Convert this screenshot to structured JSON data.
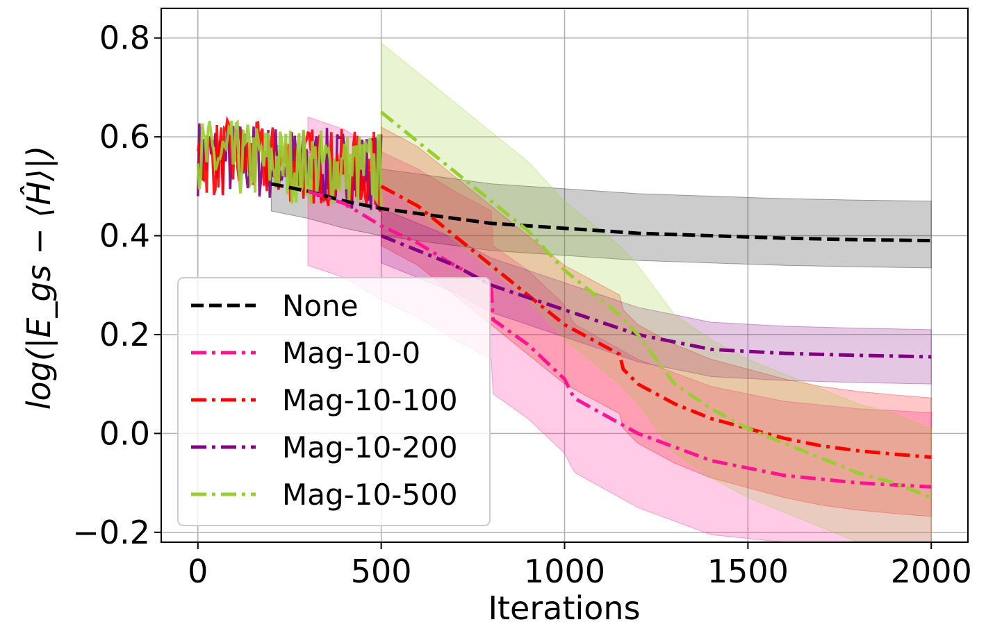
{
  "chart_data": {
    "type": "line",
    "title": "",
    "xlabel": "Iterations",
    "ylabel": "log(|E_gs − ⟨Ĥ⟩|)",
    "xlim": [
      -100,
      2100
    ],
    "ylim": [
      -0.22,
      0.86
    ],
    "xticks": [
      0,
      500,
      1000,
      1500,
      2000
    ],
    "xtick_labels": [
      "0",
      "500",
      "1000",
      "1500",
      "2000"
    ],
    "yticks": [
      -0.2,
      0.0,
      0.2,
      0.4,
      0.6,
      0.8
    ],
    "ytick_labels": [
      "−0.2",
      "0.0",
      "0.2",
      "0.4",
      "0.6",
      "0.8"
    ],
    "grid": true,
    "legend_position": "bottom-left",
    "series": [
      {
        "name": "None",
        "color": "#000000",
        "dash": "dashed",
        "band": [
          0.08,
          0.055
        ],
        "x": [
          200,
          300,
          400,
          500,
          600,
          700,
          800,
          900,
          1000,
          1200,
          1400,
          1600,
          1800,
          2000
        ],
        "y": [
          0.505,
          0.49,
          0.47,
          0.455,
          0.445,
          0.435,
          0.425,
          0.42,
          0.415,
          0.405,
          0.4,
          0.395,
          0.392,
          0.39
        ]
      },
      {
        "name": "Mag-10-0",
        "color": "#ff1493",
        "dash": "dashdot",
        "band": [
          0.15,
          0.15
        ],
        "x": [
          300,
          400,
          500,
          600,
          700,
          800,
          805,
          900,
          1000,
          1020,
          1030,
          1200,
          1400,
          1600,
          1800,
          2000
        ],
        "y": [
          0.49,
          0.465,
          0.42,
          0.385,
          0.34,
          0.3,
          0.23,
          0.18,
          0.11,
          0.08,
          0.07,
          0.0,
          -0.055,
          -0.085,
          -0.1,
          -0.108
        ]
      },
      {
        "name": "Mag-10-100",
        "color": "#ff0000",
        "dash": "dashdot",
        "band": [
          0.12,
          0.12
        ],
        "x": [
          500,
          550,
          600,
          650,
          700,
          750,
          800,
          850,
          900,
          950,
          1000,
          1050,
          1100,
          1150,
          1160,
          1200,
          1300,
          1400,
          1500,
          1600,
          1700,
          1800,
          1900,
          2000
        ],
        "y": [
          0.5,
          0.48,
          0.46,
          0.43,
          0.4,
          0.37,
          0.34,
          0.31,
          0.28,
          0.25,
          0.22,
          0.2,
          0.18,
          0.16,
          0.13,
          0.1,
          0.06,
          0.03,
          0.01,
          -0.01,
          -0.025,
          -0.035,
          -0.042,
          -0.048
        ]
      },
      {
        "name": "Mag-10-200",
        "color": "#800080",
        "dash": "dashdot",
        "band": [
          0.055,
          0.055
        ],
        "x": [
          500,
          600,
          700,
          800,
          900,
          1000,
          1100,
          1200,
          1400,
          1600,
          1800,
          2000
        ],
        "y": [
          0.4,
          0.37,
          0.34,
          0.3,
          0.275,
          0.25,
          0.225,
          0.2,
          0.17,
          0.162,
          0.158,
          0.155
        ]
      },
      {
        "name": "Mag-10-500",
        "color": "#9acd32",
        "dash": "dashdot",
        "band": [
          0.14,
          0.14
        ],
        "x": [
          500,
          550,
          600,
          650,
          700,
          750,
          800,
          850,
          900,
          950,
          1000,
          1050,
          1100,
          1150,
          1200,
          1300,
          1400,
          1500,
          1600,
          1700,
          1800,
          1900,
          2000
        ],
        "y": [
          0.65,
          0.62,
          0.59,
          0.56,
          0.53,
          0.5,
          0.47,
          0.44,
          0.41,
          0.37,
          0.33,
          0.3,
          0.27,
          0.24,
          0.2,
          0.1,
          0.05,
          0.01,
          -0.02,
          -0.05,
          -0.08,
          -0.1,
          -0.13
        ]
      }
    ],
    "noisy_phase": {
      "x_range": [
        0,
        500
      ],
      "y_center": 0.56,
      "amplitude": 0.08
    }
  }
}
